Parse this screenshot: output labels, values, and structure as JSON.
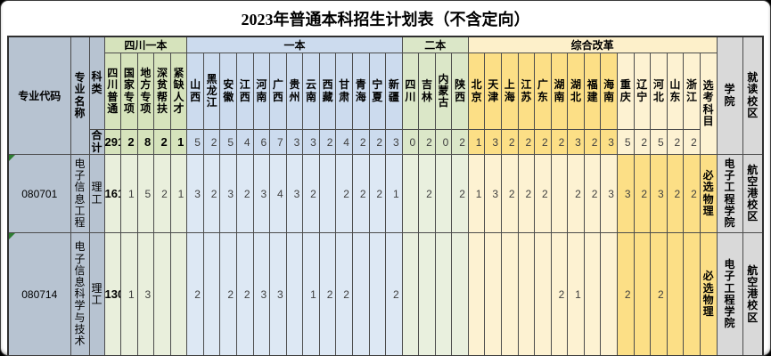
{
  "title": "2023年普通本科招生计划表（不含定向）",
  "header": {
    "code": "专业代码",
    "name": "专业名称",
    "category": "科类",
    "total_label": "合计",
    "groups": [
      {
        "label": "四川一本"
      },
      {
        "label": "一本"
      },
      {
        "label": "二本"
      },
      {
        "label": "综合改革"
      }
    ],
    "exam": "选考科目",
    "college": "学院",
    "campus": "就读校区",
    "sichuan_cols": [
      "四川普通",
      "国家专项",
      "地方专项",
      "深贫帮扶",
      "紧缺人才"
    ],
    "yiben_cols": [
      "山西",
      "黑龙江",
      "安徽",
      "江西",
      "河南",
      "广西",
      "贵州",
      "云南",
      "西藏",
      "甘肃",
      "青海",
      "宁夏",
      "新疆"
    ],
    "erben_cols": [
      "四川",
      "吉林",
      "内蒙古",
      "陕西"
    ],
    "zonggai_cols": [
      "北京",
      "天津",
      "上海",
      "江苏",
      "广东",
      "湖南",
      "湖北",
      "福建",
      "海南",
      "重庆",
      "辽宁",
      "河北",
      "山东",
      "浙江"
    ]
  },
  "total_row": {
    "label": "合计",
    "sichuan": [
      "291",
      "2",
      "8",
      "2",
      "1"
    ],
    "yiben": [
      "5",
      "2",
      "5",
      "4",
      "6",
      "7",
      "3",
      "3",
      "2",
      "4",
      "2",
      "2",
      "3"
    ],
    "erben": [
      "0",
      "2",
      "0",
      "2"
    ],
    "zonggai": [
      "1",
      "3",
      "2",
      "2",
      "2",
      "2",
      "3",
      "2",
      "3",
      "5",
      "2",
      "5",
      "2",
      "2"
    ]
  },
  "rows": [
    {
      "code": "080701",
      "name": "电子信息工程",
      "category": "理工",
      "sichuan": [
        "161",
        "1",
        "5",
        "2",
        "1"
      ],
      "yiben": [
        "3",
        "2",
        "3",
        "2",
        "3",
        "4",
        "3",
        "2",
        "",
        "2",
        "2",
        "2",
        "1"
      ],
      "erben": [
        "",
        "2",
        "",
        "2"
      ],
      "zonggai": [
        "1",
        "3",
        "2",
        "2",
        "2",
        "",
        "2",
        "2",
        "3",
        "3",
        "2",
        "3",
        "2",
        "2"
      ],
      "exam": "必选物理",
      "college": "电子工程学院",
      "campus": "航空港校区"
    },
    {
      "code": "080714",
      "name": "电子信息科学与技术",
      "category": "理工",
      "sichuan": [
        "130",
        "1",
        "3",
        "",
        ""
      ],
      "yiben": [
        "2",
        "",
        "2",
        "2",
        "3",
        "3",
        "",
        "1",
        "2",
        "2",
        "",
        "",
        "2"
      ],
      "erben": [
        "",
        "",
        "",
        ""
      ],
      "zonggai": [
        "",
        "",
        "",
        "",
        "",
        "2",
        "1",
        "",
        "",
        "2",
        "",
        "2",
        "",
        ""
      ],
      "exam": "必选物理",
      "college": "电子工程学院",
      "campus": "航空港校区"
    }
  ],
  "colors": {
    "grayblue": "#b7c3d1",
    "graylight": "#d9d9d9",
    "greenhdr": "#d6e3bc",
    "greendata": "#e9efdc",
    "bluehdr": "#ccdbee",
    "bluedata": "#dde8f4",
    "green2hdr": "#dbe7c8",
    "green2data": "#e9f0de",
    "yellowdark": "#fcdf86",
    "yellowlight": "#fdf2d2",
    "cream": "#fdf0ca",
    "triangle": "#2e7d32"
  }
}
